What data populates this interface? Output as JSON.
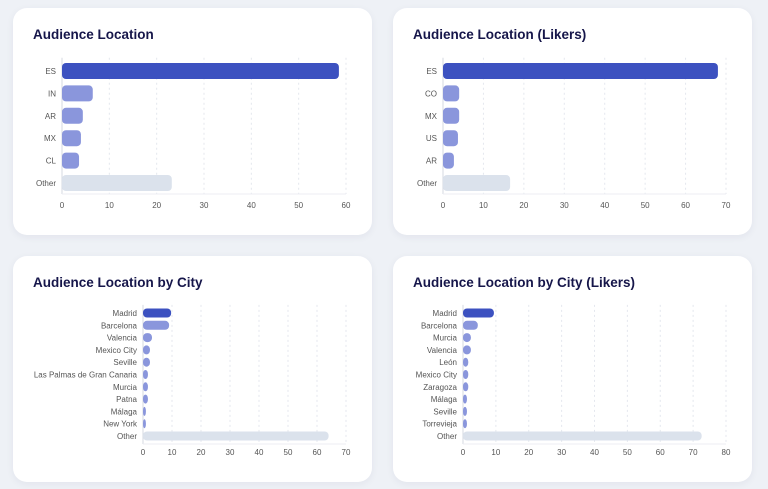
{
  "colors": {
    "primary": "#3c51c0",
    "secondary": "#8a96dc",
    "other": "#dbe2ec",
    "title": "#16164a",
    "background": "#eef1f6"
  },
  "chart_data": [
    {
      "type": "bar",
      "orientation": "horizontal",
      "title": "Audience Location",
      "categories": [
        "ES",
        "IN",
        "AR",
        "MX",
        "CL",
        "Other"
      ],
      "values": [
        58.5,
        6.5,
        4.4,
        4.0,
        3.6,
        23.2
      ],
      "xlim": [
        0,
        60
      ],
      "xticks": [
        "0",
        "10",
        "20",
        "30",
        "40",
        "50",
        "60"
      ],
      "grid": true
    },
    {
      "type": "bar",
      "orientation": "horizontal",
      "title": "Audience Location (Likers)",
      "categories": [
        "ES",
        "CO",
        "MX",
        "US",
        "AR",
        "Other"
      ],
      "values": [
        68,
        4.0,
        4.0,
        3.7,
        2.7,
        16.6
      ],
      "xlim": [
        0,
        70
      ],
      "xticks": [
        "0",
        "10",
        "20",
        "30",
        "40",
        "50",
        "60",
        "70"
      ],
      "grid": true
    },
    {
      "type": "bar",
      "orientation": "horizontal",
      "title": "Audience Location by City",
      "categories": [
        "Madrid",
        "Barcelona",
        "Valencia",
        "Mexico City",
        "Seville",
        "Las Palmas de Gran Canaria",
        "Murcia",
        "Patna",
        "Málaga",
        "New York",
        "Other"
      ],
      "values": [
        9.7,
        9.0,
        3.1,
        2.4,
        2.4,
        1.7,
        1.7,
        1.7,
        1.0,
        1.0,
        64
      ],
      "xlim": [
        0,
        70
      ],
      "xticks": [
        "0",
        "10",
        "20",
        "30",
        "40",
        "50",
        "60",
        "70"
      ],
      "grid": true
    },
    {
      "type": "bar",
      "orientation": "horizontal",
      "title": "Audience Location by City (Likers)",
      "categories": [
        "Madrid",
        "Barcelona",
        "Murcia",
        "Valencia",
        "León",
        "Mexico City",
        "Zaragoza",
        "Málaga",
        "Seville",
        "Torrevieja",
        "Other"
      ],
      "values": [
        9.4,
        4.5,
        2.4,
        2.4,
        1.6,
        1.6,
        1.6,
        1.2,
        1.2,
        1.2,
        72.6
      ],
      "xlim": [
        0,
        80
      ],
      "xticks": [
        "0",
        "10",
        "20",
        "30",
        "40",
        "50",
        "60",
        "70",
        "80"
      ],
      "grid": true
    }
  ]
}
